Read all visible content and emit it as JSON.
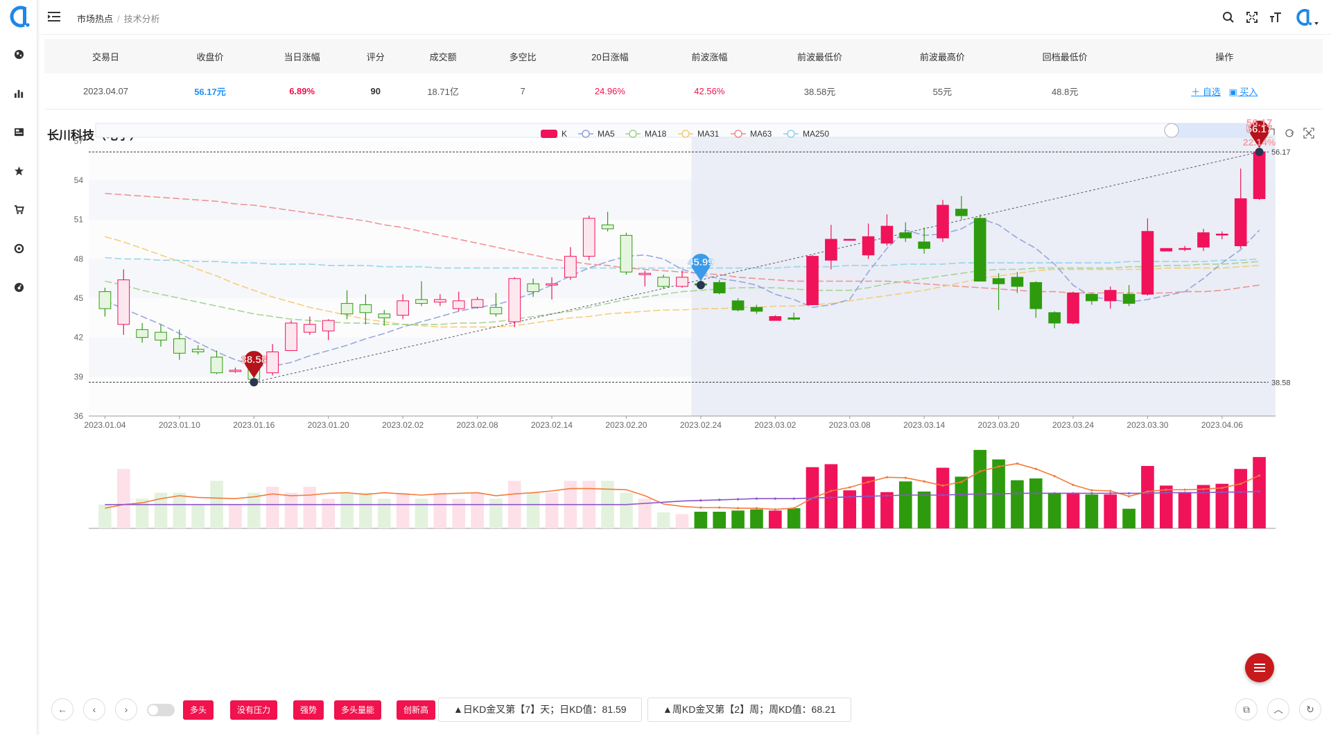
{
  "breadcrumb": {
    "parent": "市场热点",
    "current": "技术分析"
  },
  "summary": {
    "headers": [
      "交易日",
      "收盘价",
      "当日涨幅",
      "评分",
      "成交额",
      "多空比",
      "20日涨幅",
      "前波涨幅",
      "前波最低价",
      "前波最高价",
      "回档最低价",
      "操作"
    ],
    "row": {
      "date": "2023.04.07",
      "close": "56.17元",
      "change": "6.89%",
      "score": "90",
      "amount": "18.71亿",
      "ratio": "7",
      "chg20": "24.96%",
      "wave_chg": "42.56%",
      "wave_low": "38.58元",
      "wave_high": "55元",
      "pullback_low": "48.8元",
      "op_watch": "＋ 自选",
      "op_buy": "买入"
    }
  },
  "stock_title": "长川科技（电子）",
  "legend": [
    "K",
    "MA5",
    "MA18",
    "MA31",
    "MA63",
    "MA250"
  ],
  "colors": {
    "up": "#f0135a",
    "down": "#2e9b0e",
    "ma5": "#8e9fd8",
    "ma18": "#9ed08a",
    "ma31": "#f6c86b",
    "ma63": "#ec8a8a",
    "ma250": "#8ed0e8",
    "vol_ma_fast": "#f47a3a",
    "vol_ma_slow": "#8a54c8"
  },
  "chart_data": {
    "type": "candlestick",
    "title": "长川科技（电子）",
    "ylim": [
      36,
      57.5
    ],
    "y_ticks": [
      36,
      39,
      42,
      45,
      48,
      51,
      54,
      57
    ],
    "x_ticks": [
      "2023.01.04",
      "2023.01.10",
      "2023.01.16",
      "2023.01.20",
      "2023.02.02",
      "2023.02.08",
      "2023.02.14",
      "2023.02.20",
      "2023.02.24",
      "2023.03.02",
      "2023.03.08",
      "2023.03.14",
      "2023.03.20",
      "2023.03.24",
      "2023.03.30",
      "2023.04.06"
    ],
    "candles": [
      [
        45.5,
        44.2,
        45.8,
        43.6
      ],
      [
        43.0,
        46.4,
        47.2,
        42.2
      ],
      [
        42.6,
        42.0,
        43.1,
        41.6
      ],
      [
        42.4,
        41.8,
        43.0,
        41.3
      ],
      [
        41.9,
        40.8,
        42.6,
        40.3
      ],
      [
        41.1,
        40.9,
        41.4,
        40.7
      ],
      [
        40.5,
        39.3,
        41.0,
        39.2
      ],
      [
        39.4,
        39.5,
        39.7,
        39.3
      ],
      [
        39.9,
        38.8,
        40.3,
        38.6
      ],
      [
        39.3,
        40.9,
        41.5,
        39.1
      ],
      [
        41.0,
        43.1,
        43.3,
        41.0
      ],
      [
        42.4,
        43.0,
        43.6,
        42.2
      ],
      [
        42.5,
        43.3,
        43.4,
        41.8
      ],
      [
        44.6,
        43.8,
        45.6,
        43.4
      ],
      [
        44.5,
        43.9,
        45.3,
        43.0
      ],
      [
        43.8,
        43.5,
        44.1,
        42.9
      ],
      [
        43.7,
        44.8,
        45.3,
        43.4
      ],
      [
        44.9,
        44.6,
        46.3,
        44.4
      ],
      [
        44.7,
        44.9,
        45.3,
        44.4
      ],
      [
        44.2,
        44.8,
        45.5,
        44.0
      ],
      [
        44.3,
        44.9,
        45.1,
        44.2
      ],
      [
        44.3,
        43.8,
        45.4,
        43.6
      ],
      [
        43.2,
        46.5,
        46.6,
        42.8
      ],
      [
        46.1,
        45.5,
        46.5,
        45.1
      ],
      [
        46.0,
        46.1,
        46.6,
        44.9
      ],
      [
        46.6,
        48.2,
        48.9,
        46.4
      ],
      [
        48.2,
        51.1,
        51.3,
        47.9
      ],
      [
        50.6,
        50.3,
        51.6,
        50.1
      ],
      [
        49.8,
        47.0,
        50.0,
        46.8
      ],
      [
        46.8,
        46.9,
        47.1,
        45.9
      ],
      [
        46.6,
        45.9,
        46.8,
        45.7
      ],
      [
        45.9,
        46.6,
        47.1,
        45.8
      ],
      [
        46.1,
        46.0,
        46.4,
        46.0
      ],
      [
        46.2,
        45.4,
        46.4,
        45.3
      ],
      [
        44.8,
        44.1,
        45.0,
        44.0
      ],
      [
        44.3,
        44.0,
        44.5,
        43.8
      ],
      [
        43.3,
        43.6,
        43.7,
        43.3
      ],
      [
        43.5,
        43.4,
        43.9,
        43.3
      ],
      [
        44.5,
        48.2,
        48.3,
        44.5
      ],
      [
        47.9,
        49.5,
        50.6,
        47.2
      ],
      [
        49.5,
        49.5,
        49.5,
        49.5
      ],
      [
        48.3,
        49.7,
        50.7,
        48.0
      ],
      [
        49.2,
        50.5,
        51.4,
        49.0
      ],
      [
        50.0,
        49.6,
        50.8,
        49.3
      ],
      [
        49.3,
        48.8,
        50.4,
        48.4
      ],
      [
        49.6,
        52.1,
        52.5,
        49.3
      ],
      [
        51.8,
        51.3,
        52.8,
        51.0
      ],
      [
        51.1,
        46.3,
        51.4,
        46.3
      ],
      [
        46.5,
        46.1,
        46.9,
        44.1
      ],
      [
        46.6,
        45.9,
        47.0,
        45.4
      ],
      [
        46.2,
        44.2,
        46.3,
        43.5
      ],
      [
        43.9,
        43.1,
        44.0,
        42.7
      ],
      [
        43.1,
        45.4,
        45.5,
        43.0
      ],
      [
        45.3,
        44.8,
        45.4,
        44.5
      ],
      [
        44.8,
        45.6,
        45.9,
        44.2
      ],
      [
        45.3,
        44.6,
        46.0,
        44.4
      ],
      [
        45.3,
        50.1,
        51.1,
        45.2
      ],
      [
        48.6,
        48.8,
        48.8,
        48.7
      ],
      [
        48.8,
        48.8,
        49.0,
        48.6
      ],
      [
        48.9,
        50.0,
        50.3,
        48.6
      ],
      [
        49.9,
        49.9,
        50.1,
        49.5
      ],
      [
        49.0,
        52.6,
        54.9,
        48.8
      ],
      [
        52.6,
        56.17,
        56.17,
        52.5
      ]
    ],
    "ma5": [
      44.8,
      44.2,
      43.6,
      43.0,
      42.3,
      41.6,
      40.9,
      40.3,
      39.9,
      39.8,
      40.1,
      40.6,
      41.0,
      41.4,
      41.9,
      42.3,
      42.8,
      43.2,
      43.6,
      44.0,
      44.3,
      44.5,
      44.9,
      45.4,
      46.0,
      46.7,
      47.3,
      47.8,
      48.2,
      48.3,
      48.0,
      47.2,
      46.8,
      46.5,
      46.3,
      46.0,
      45.3,
      44.9,
      44.3,
      44.5,
      44.9,
      47.0,
      48.8,
      50.2,
      49.8,
      49.9,
      50.3,
      51.1,
      50.6,
      49.6,
      48.8,
      47.6,
      46.0,
      45.1,
      44.9,
      44.7,
      44.9,
      45.2,
      45.5,
      46.5,
      47.7,
      48.7,
      50.2
    ],
    "ma18": [
      46.3,
      46.0,
      45.6,
      45.3,
      45.0,
      44.7,
      44.4,
      44.1,
      43.8,
      43.6,
      43.4,
      43.3,
      43.2,
      43.1,
      43.1,
      43.0,
      43.0,
      43.0,
      43.0,
      43.1,
      43.1,
      43.2,
      43.4,
      43.6,
      43.8,
      44.0,
      44.3,
      44.6,
      44.9,
      45.1,
      45.3,
      45.5,
      45.6,
      45.7,
      45.8,
      45.8,
      45.8,
      45.7,
      45.6,
      45.6,
      45.6,
      45.8,
      46.1,
      46.3,
      46.5,
      46.7,
      46.9,
      47.1,
      47.2,
      47.2,
      47.3,
      47.3,
      47.3,
      47.3,
      47.3,
      47.4,
      47.4,
      47.5,
      47.5,
      47.6,
      47.6,
      47.7,
      47.8
    ],
    "ma31": [
      49.7,
      49.3,
      48.8,
      48.3,
      47.8,
      47.2,
      46.7,
      46.1,
      45.6,
      45.1,
      44.7,
      44.3,
      44.0,
      43.7,
      43.4,
      43.2,
      43.0,
      42.9,
      42.8,
      42.8,
      42.8,
      42.8,
      42.9,
      43.1,
      43.3,
      43.5,
      43.6,
      43.8,
      43.9,
      44.0,
      44.1,
      44.1,
      44.2,
      44.2,
      44.3,
      44.3,
      44.4,
      44.4,
      44.5,
      44.6,
      44.8,
      45.0,
      45.2,
      45.4,
      45.6,
      45.9,
      46.2,
      46.5,
      46.7,
      46.9,
      47.1,
      47.2,
      47.2,
      47.2,
      47.2,
      47.2,
      47.2,
      47.3,
      47.3,
      47.3,
      47.3,
      47.4,
      47.5
    ],
    "ma63": [
      53.0,
      52.9,
      52.8,
      52.7,
      52.6,
      52.5,
      52.4,
      52.2,
      52.1,
      51.9,
      51.7,
      51.5,
      51.3,
      51.1,
      50.9,
      50.6,
      50.4,
      50.1,
      49.8,
      49.5,
      49.2,
      48.9,
      48.6,
      48.3,
      48.0,
      47.8,
      47.6,
      47.5,
      47.3,
      47.2,
      47.1,
      47.0,
      46.9,
      46.8,
      46.6,
      46.5,
      46.4,
      46.3,
      46.3,
      46.3,
      46.3,
      46.3,
      46.3,
      46.2,
      46.1,
      46.0,
      45.9,
      45.8,
      45.7,
      45.6,
      45.5,
      45.5,
      45.4,
      45.4,
      45.4,
      45.4,
      45.4,
      45.4,
      45.5,
      45.5,
      45.6,
      45.8,
      46.0
    ],
    "ma250": [
      48.1,
      48.0,
      48.0,
      47.9,
      47.9,
      47.8,
      47.8,
      47.7,
      47.7,
      47.6,
      47.6,
      47.6,
      47.5,
      47.5,
      47.5,
      47.4,
      47.4,
      47.4,
      47.3,
      47.3,
      47.3,
      47.3,
      47.3,
      47.3,
      47.3,
      47.3,
      47.3,
      47.3,
      47.3,
      47.3,
      47.3,
      47.3,
      47.3,
      47.3,
      47.3,
      47.3,
      47.3,
      47.4,
      47.4,
      47.4,
      47.5,
      47.5,
      47.5,
      47.6,
      47.6,
      47.6,
      47.7,
      47.7,
      47.7,
      47.7,
      47.7,
      47.7,
      47.7,
      47.7,
      47.7,
      47.8,
      47.8,
      47.8,
      47.8,
      47.8,
      47.9,
      47.9,
      48.0
    ],
    "volumes": [
      4,
      10,
      5,
      6,
      6,
      4,
      8,
      4,
      6,
      7,
      6,
      7,
      5,
      6,
      6,
      5,
      6,
      5,
      6,
      5,
      6,
      5,
      8,
      6,
      6,
      8,
      8,
      8,
      6,
      5,
      2.7,
      2.4,
      2.8,
      2.8,
      3.0,
      3.2,
      3.0,
      3.4,
      10.3,
      10.8,
      6.4,
      8.7,
      6.1,
      7.9,
      6.2,
      10.2,
      8.7,
      13.2,
      11.6,
      8.1,
      8.4,
      6.0,
      6.0,
      5.7,
      5.7,
      3.3,
      10.5,
      7.2,
      6.1,
      7.3,
      7.5,
      10.0,
      12.0
    ],
    "vol_ma_fast": [
      3.4,
      4.0,
      4.3,
      5.0,
      5.5,
      5.2,
      5.1,
      5.0,
      5.3,
      5.8,
      5.5,
      5.6,
      5.9,
      6.0,
      5.7,
      6.0,
      5.8,
      5.6,
      5.8,
      5.9,
      6.0,
      5.5,
      5.8,
      6.0,
      6.3,
      6.7,
      6.7,
      6.6,
      6.5,
      5.5,
      4.1,
      3.7,
      3.5,
      3.5,
      3.4,
      3.4,
      3.2,
      3.4,
      5.1,
      6.3,
      6.9,
      7.8,
      8.6,
      8.5,
      7.9,
      7.2,
      7.8,
      9.6,
      10.4,
      10.9,
      10.0,
      8.8,
      7.3,
      6.4,
      6.3,
      5.4,
      6.2,
      6.5,
      6.5,
      6.6,
      6.8,
      7.5,
      8.9
    ],
    "vol_ma_slow": [
      4.0,
      4.0,
      4.0,
      4.0,
      4.0,
      4.0,
      4.0,
      4.0,
      4.0,
      4.0,
      4.0,
      4.0,
      4.0,
      4.0,
      4.0,
      4.0,
      4.0,
      4.0,
      4.0,
      4.0,
      4.0,
      4.0,
      4.0,
      4.0,
      4.0,
      4.0,
      4.0,
      4.0,
      4.0,
      4.2,
      4.4,
      4.6,
      4.7,
      4.8,
      4.9,
      5.0,
      5.0,
      5.0,
      5.1,
      5.2,
      5.3,
      5.4,
      5.5,
      5.6,
      5.6,
      5.6,
      5.7,
      5.8,
      5.8,
      5.9,
      5.9,
      5.9,
      5.9,
      5.9,
      5.9,
      5.9,
      5.9,
      6.0,
      6.0,
      6.0,
      6.1,
      6.1,
      6.2
    ],
    "markers": {
      "low": "38.58",
      "mid": "45.99",
      "high": "56.17",
      "high_pct": "22.14%"
    },
    "hline_labels": {
      "top": "56.17",
      "bottom": "38.58"
    }
  },
  "bottom_bar": {
    "tags": [
      "多头",
      "没有压力",
      "强势",
      "多头量能",
      "创新高"
    ],
    "kd_daily": "▲日KD金叉第【7】天；日KD值：81.59",
    "kd_weekly": "▲周KD金叉第【2】周；周KD值：68.21"
  }
}
